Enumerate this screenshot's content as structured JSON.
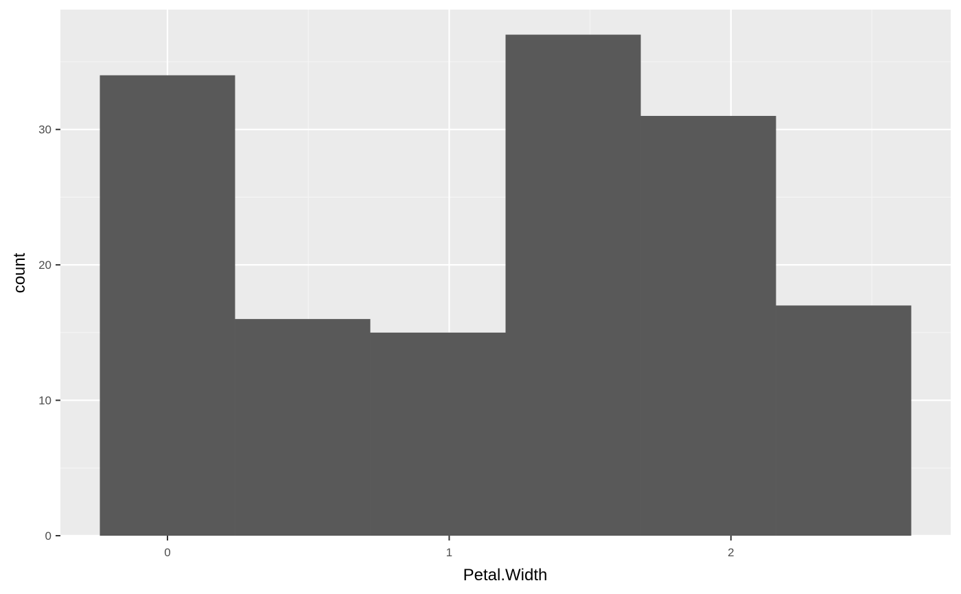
{
  "chart_data": {
    "type": "bar",
    "xlabel": "Petal.Width",
    "ylabel": "count",
    "xlim": [
      -0.38,
      2.78
    ],
    "ylim": [
      0,
      38.85
    ],
    "x_ticks": [
      0,
      1,
      2
    ],
    "x_tick_labels": [
      "0",
      "1",
      "2"
    ],
    "y_ticks": [
      0,
      10,
      20,
      30
    ],
    "y_tick_labels": [
      "0",
      "10",
      "20",
      "30"
    ],
    "bins": [
      {
        "x_start": -0.24,
        "x_end": 0.24,
        "count": 34
      },
      {
        "x_start": 0.24,
        "x_end": 0.72,
        "count": 16
      },
      {
        "x_start": 0.72,
        "x_end": 1.2,
        "count": 15
      },
      {
        "x_start": 1.2,
        "x_end": 1.68,
        "count": 37
      },
      {
        "x_start": 1.68,
        "x_end": 2.16,
        "count": 31
      },
      {
        "x_start": 2.16,
        "x_end": 2.64,
        "count": 17
      }
    ],
    "grid": true,
    "colors": {
      "panel_background": "#ebebeb",
      "grid_major": "#ffffff",
      "grid_minor": "#f5f5f5",
      "bar_fill": "#595959",
      "tick_mark": "#333333"
    }
  }
}
